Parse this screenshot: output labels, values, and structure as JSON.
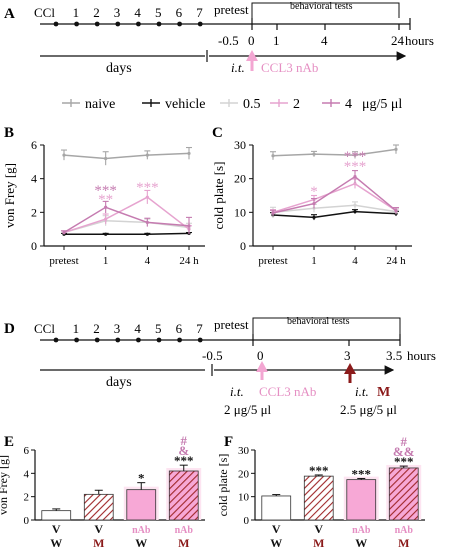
{
  "panels": {
    "A": {
      "label": "A",
      "timeline_ticks": [
        "CCl",
        "1",
        "2",
        "3",
        "4",
        "5",
        "6",
        "7"
      ],
      "pretest": "pretest",
      "behavioral_tests": "behavioral tests",
      "time_ticks": [
        "-0.5",
        "0",
        "1",
        "4",
        "24"
      ],
      "hours": "hours",
      "days": "days",
      "injection_it": "i.t.",
      "injection_drug": "CCL3 nAb"
    },
    "D": {
      "label": "D",
      "timeline_ticks": [
        "CCl",
        "1",
        "2",
        "3",
        "4",
        "5",
        "6",
        "7"
      ],
      "pretest": "pretest",
      "behavioral_tests": "behavioral tests",
      "time_ticks": [
        "-0.5",
        "0",
        "3",
        "3.5"
      ],
      "hours": "hours",
      "days": "days",
      "injection1_it": "i.t.",
      "injection1_drug": "CCL3 nAb",
      "injection1_dose": "2 μg/5 μl",
      "injection2_it": "i.t.",
      "injection2_drug": "M",
      "injection2_dose": "2.5 μg/5 μl"
    }
  },
  "legend": {
    "items": [
      "naive",
      "vehicle",
      "0.5",
      "2",
      "4"
    ],
    "unit": "μg/5 μl"
  },
  "colors": {
    "naive": "#a6a6a6",
    "vehicle": "#111111",
    "dose_0_5": "#d3d3d3",
    "dose_2": "#e6a3cf",
    "dose_4": "#c57bb0",
    "pink": "#e58fc3",
    "dark_red": "#8b1a1a",
    "bar_vw": "#ffffff",
    "bar_nab": "#f7a8d6",
    "hatch": "#a0282a"
  },
  "chart_data": [
    {
      "panel": "B",
      "type": "line",
      "ylabel": "von Frey [g]",
      "xlabel": "",
      "categories": [
        "pretest",
        "1",
        "4",
        "24 h"
      ],
      "ylim": [
        0,
        6
      ],
      "yticks": [
        0,
        2,
        4,
        6
      ],
      "series": [
        {
          "name": "naive",
          "values": [
            5.4,
            5.2,
            5.4,
            5.5
          ],
          "err": [
            0.3,
            0.4,
            0.25,
            0.35
          ]
        },
        {
          "name": "vehicle",
          "values": [
            0.7,
            0.7,
            0.7,
            0.75
          ],
          "err": [
            0.05,
            0.05,
            0.05,
            0.05
          ]
        },
        {
          "name": "0.5",
          "values": [
            0.8,
            1.5,
            1.4,
            1.1
          ],
          "err": [
            0.1,
            0.3,
            0.2,
            0.25
          ]
        },
        {
          "name": "2",
          "values": [
            0.8,
            1.6,
            2.9,
            1.0
          ],
          "err": [
            0.1,
            0.3,
            0.4,
            0.2
          ]
        },
        {
          "name": "4",
          "values": [
            0.8,
            2.3,
            1.4,
            1.2
          ],
          "err": [
            0.1,
            0.35,
            0.25,
            0.5
          ]
        }
      ],
      "annotations": [
        {
          "x": "1",
          "y": 3.4,
          "text": "***",
          "color": "#c57bb0"
        },
        {
          "x": "1",
          "y": 2.85,
          "text": "**",
          "color": "#e6a3cf"
        },
        {
          "x": "4",
          "y": 3.55,
          "text": "***",
          "color": "#e6a3cf"
        }
      ]
    },
    {
      "panel": "C",
      "type": "line",
      "ylabel": "cold plate [s]",
      "xlabel": "",
      "categories": [
        "pretest",
        "1",
        "4",
        "24 h"
      ],
      "ylim": [
        0,
        30
      ],
      "yticks": [
        0,
        10,
        20,
        30
      ],
      "series": [
        {
          "name": "naive",
          "values": [
            26.8,
            27.3,
            27,
            28.7
          ],
          "err": [
            1.2,
            0.8,
            1.0,
            1.3
          ]
        },
        {
          "name": "vehicle",
          "values": [
            9.2,
            8.5,
            10.2,
            9.6
          ],
          "err": [
            0.7,
            0.8,
            0.6,
            0.7
          ]
        },
        {
          "name": "0.5",
          "values": [
            10,
            11.2,
            12.1,
            10.2
          ],
          "err": [
            1.5,
            1.2,
            1.0,
            0.8
          ]
        },
        {
          "name": "2",
          "values": [
            10,
            13.8,
            18.5,
            10.5
          ],
          "err": [
            0.8,
            1.2,
            1.4,
            0.9
          ]
        },
        {
          "name": "4",
          "values": [
            9.8,
            12.6,
            20.6,
            10.5
          ],
          "err": [
            0.8,
            1.5,
            1.8,
            0.9
          ]
        }
      ],
      "annotations": [
        {
          "x": "1",
          "y": 16.6,
          "text": "*",
          "color": "#e6a3cf"
        },
        {
          "x": "4",
          "y": 27.0,
          "text": "***",
          "color": "#c57bb0"
        },
        {
          "x": "4",
          "y": 24.1,
          "text": "***",
          "color": "#e6a3cf"
        }
      ]
    },
    {
      "panel": "E",
      "type": "bar",
      "ylabel": "von Frey [g]",
      "xlabel": "",
      "ylim": [
        0,
        6
      ],
      "yticks": [
        0,
        2,
        4,
        6
      ],
      "categories_top": [
        "V",
        "V",
        "nAb",
        "nAb"
      ],
      "categories_bottom": [
        "W",
        "M",
        "W",
        "M"
      ],
      "values": [
        0.8,
        2.2,
        2.6,
        4.2
      ],
      "err": [
        0.15,
        0.35,
        0.6,
        0.5
      ],
      "annotations": [
        {
          "index": 2,
          "lines": [
            {
              "text": "*",
              "color": "#111111"
            }
          ]
        },
        {
          "index": 3,
          "lines": [
            {
              "text": "#",
              "color": "#c57bb0"
            },
            {
              "text": "&",
              "color": "#c57bb0"
            },
            {
              "text": "***",
              "color": "#111111"
            }
          ]
        }
      ]
    },
    {
      "panel": "F",
      "type": "bar",
      "ylabel": "cold plate [s]",
      "xlabel": "",
      "ylim": [
        0,
        30
      ],
      "yticks": [
        0,
        10,
        20,
        30
      ],
      "categories_top": [
        "V",
        "V",
        "nAb",
        "nAb"
      ],
      "categories_bottom": [
        "W",
        "M",
        "W",
        "M"
      ],
      "values": [
        10.3,
        18.8,
        17.3,
        22.3
      ],
      "err": [
        0.6,
        0.5,
        0.5,
        0.8
      ],
      "annotations": [
        {
          "index": 1,
          "lines": [
            {
              "text": "***",
              "color": "#111111"
            }
          ]
        },
        {
          "index": 2,
          "lines": [
            {
              "text": "***",
              "color": "#111111"
            }
          ]
        },
        {
          "index": 3,
          "lines": [
            {
              "text": "#",
              "color": "#c57bb0"
            },
            {
              "text": "&&",
              "color": "#c57bb0"
            },
            {
              "text": "***",
              "color": "#111111"
            }
          ]
        }
      ]
    }
  ]
}
